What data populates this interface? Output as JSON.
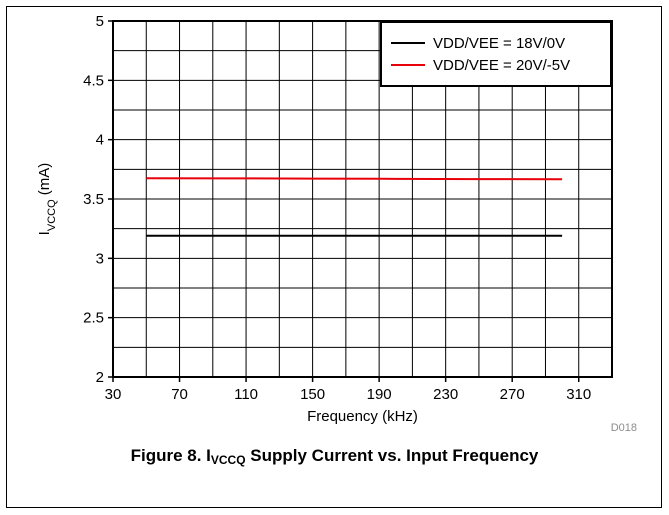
{
  "figure": {
    "caption_prefix": "Figure 8. I",
    "caption_sub": "VCCQ",
    "caption_suffix": " Supply Current vs. Input Frequency",
    "code": "D018"
  },
  "chart_data": {
    "type": "line",
    "title": "",
    "xlabel": "Frequency (kHz)",
    "ylabel_main": "I",
    "ylabel_sub": "VCCQ",
    "ylabel_unit": " (mA)",
    "xlim": [
      30,
      330
    ],
    "ylim": [
      2,
      5
    ],
    "xticks": [
      30,
      70,
      110,
      150,
      190,
      230,
      270,
      310
    ],
    "yticks": [
      2,
      2.5,
      3,
      3.5,
      4,
      4.5,
      5
    ],
    "ytick_labels": [
      "2",
      "2.5",
      "3",
      "3.5",
      "4",
      "4.5",
      "5"
    ],
    "x_minor_step": 20,
    "y_minor_step": 0.25,
    "grid": true,
    "legend_position": "top-right",
    "series": [
      {
        "name": "VDD/VEE = 18V/0V",
        "color": "#000000",
        "x": [
          50,
          100,
          150,
          200,
          250,
          300
        ],
        "y": [
          3.19,
          3.19,
          3.19,
          3.19,
          3.19,
          3.19
        ]
      },
      {
        "name": "VDD/VEE = 20V/-5V",
        "color": "#e8000b",
        "x": [
          50,
          100,
          150,
          200,
          250,
          300
        ],
        "y": [
          3.675,
          3.674,
          3.672,
          3.67,
          3.668,
          3.666
        ]
      }
    ]
  }
}
